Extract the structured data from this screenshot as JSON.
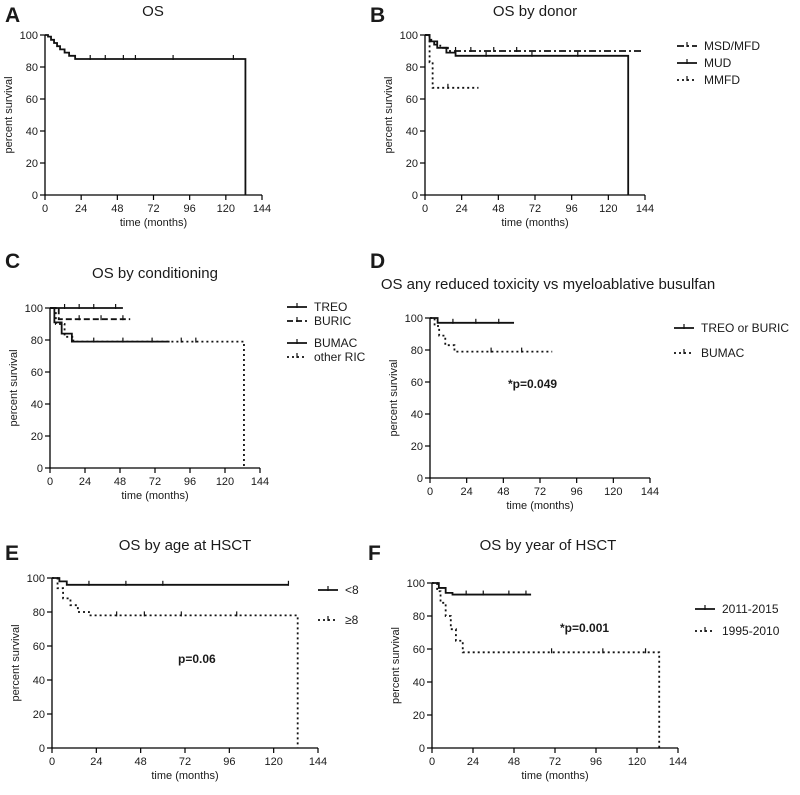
{
  "chart_data": [
    {
      "panel_label": "A",
      "type": "line",
      "title": "OS",
      "xlabel": "time (months)",
      "ylabel": "percent survival",
      "xlim": [
        0,
        144
      ],
      "ylim": [
        0,
        100
      ],
      "xticks": [
        "0",
        "24",
        "48",
        "72",
        "96",
        "120",
        "144"
      ],
      "yticks": [
        "0",
        "20",
        "40",
        "60",
        "80",
        "100"
      ],
      "annotation": "",
      "legend_position": "none",
      "series": [
        {
          "name": "",
          "style": "solid",
          "steps": [
            [
              0,
              100
            ],
            [
              2,
              99
            ],
            [
              4,
              97
            ],
            [
              6,
              95
            ],
            [
              8,
              93
            ],
            [
              10,
              91
            ],
            [
              13,
              89
            ],
            [
              16,
              87
            ],
            [
              20,
              85
            ],
            [
              133,
              85
            ],
            [
              133,
              0
            ]
          ],
          "censor": [
            30,
            40,
            52,
            60,
            85,
            125
          ]
        }
      ]
    },
    {
      "panel_label": "B",
      "type": "line",
      "title": "OS by  donor",
      "xlabel": "time (months)",
      "ylabel": "percent survival",
      "xlim": [
        0,
        144
      ],
      "ylim": [
        0,
        100
      ],
      "xticks": [
        "0",
        "24",
        "48",
        "72",
        "96",
        "120",
        "144"
      ],
      "yticks": [
        "0",
        "20",
        "40",
        "60",
        "80",
        "100"
      ],
      "annotation": "",
      "legend_position": "right",
      "series": [
        {
          "name": "MSD/MFD",
          "style": "dashdot",
          "steps": [
            [
              0,
              100
            ],
            [
              3,
              97
            ],
            [
              6,
              94
            ],
            [
              10,
              92
            ],
            [
              15,
              90
            ],
            [
              143,
              90
            ]
          ],
          "censor": [
            20,
            30,
            45,
            60
          ]
        },
        {
          "name": "MUD",
          "style": "solid",
          "steps": [
            [
              0,
              100
            ],
            [
              3,
              96
            ],
            [
              8,
              92
            ],
            [
              14,
              89
            ],
            [
              20,
              87
            ],
            [
              133,
              87
            ],
            [
              133,
              0
            ]
          ],
          "censor": [
            40,
            70,
            100
          ]
        },
        {
          "name": "MMFD",
          "style": "dotted",
          "steps": [
            [
              0,
              100
            ],
            [
              3,
              83
            ],
            [
              5,
              67
            ],
            [
              35,
              67
            ]
          ],
          "censor": [
            15
          ]
        }
      ]
    },
    {
      "panel_label": "C",
      "type": "line",
      "title": "OS by  conditioning",
      "xlabel": "time (months)",
      "ylabel": "percent survival",
      "xlim": [
        0,
        144
      ],
      "ylim": [
        0,
        100
      ],
      "xticks": [
        "0",
        "24",
        "48",
        "72",
        "96",
        "120",
        "144"
      ],
      "yticks": [
        "0",
        "20",
        "40",
        "60",
        "80",
        "100"
      ],
      "annotation": "",
      "legend_position": "right",
      "series": [
        {
          "name": "TREO",
          "style": "solid",
          "steps": [
            [
              0,
              100
            ],
            [
              50,
              100
            ]
          ],
          "censor": [
            10,
            20,
            30,
            45
          ]
        },
        {
          "name": "BURIC",
          "style": "dashed",
          "steps": [
            [
              0,
              100
            ],
            [
              6,
              93
            ],
            [
              55,
              93
            ]
          ],
          "censor": [
            20,
            35,
            50
          ]
        },
        {
          "name": "BUMAC",
          "style": "solid",
          "steps": [
            [
              0,
              100
            ],
            [
              3,
              91
            ],
            [
              8,
              84
            ],
            [
              15,
              79
            ],
            [
              82,
              79
            ]
          ],
          "censor": [
            30,
            50,
            70
          ]
        },
        {
          "name": "other RIC",
          "style": "dotted",
          "steps": [
            [
              0,
              100
            ],
            [
              4,
              90
            ],
            [
              10,
              82
            ],
            [
              16,
              79
            ],
            [
              133,
              79
            ],
            [
              133,
              0
            ]
          ],
          "censor": [
            90,
            100
          ]
        }
      ]
    },
    {
      "panel_label": "D",
      "type": "line",
      "title": "OS any reduced toxicity vs  myeloablative busulfan",
      "xlabel": "time (months)",
      "ylabel": "percent survival",
      "xlim": [
        0,
        144
      ],
      "ylim": [
        0,
        100
      ],
      "xticks": [
        "0",
        "24",
        "48",
        "72",
        "96",
        "120",
        "144"
      ],
      "yticks": [
        "0",
        "20",
        "40",
        "60",
        "80",
        "100"
      ],
      "annotation": "*p=0.049",
      "legend_position": "right",
      "series": [
        {
          "name": "TREO or BURIC",
          "style": "solid",
          "steps": [
            [
              0,
              100
            ],
            [
              5,
              97
            ],
            [
              55,
              97
            ]
          ],
          "censor": [
            15,
            30,
            45
          ]
        },
        {
          "name": "BUMAC",
          "style": "dotted",
          "steps": [
            [
              0,
              100
            ],
            [
              3,
              95
            ],
            [
              6,
              89
            ],
            [
              10,
              83
            ],
            [
              16,
              79
            ],
            [
              80,
              79
            ]
          ],
          "censor": [
            40,
            60
          ]
        }
      ]
    },
    {
      "panel_label": "E",
      "type": "line",
      "title": "OS by  age at HSCT",
      "xlabel": "time (months)",
      "ylabel": "percent survival",
      "xlim": [
        0,
        144
      ],
      "ylim": [
        0,
        100
      ],
      "xticks": [
        "0",
        "24",
        "48",
        "72",
        "96",
        "120",
        "144"
      ],
      "yticks": [
        "0",
        "20",
        "40",
        "60",
        "80",
        "100"
      ],
      "annotation": "p=0.06",
      "legend_position": "right",
      "series": [
        {
          "name": "<8",
          "style": "solid",
          "steps": [
            [
              0,
              100
            ],
            [
              4,
              98
            ],
            [
              8,
              96
            ],
            [
              128,
              96
            ]
          ],
          "censor": [
            20,
            40,
            60,
            128
          ]
        },
        {
          "name": "≥8",
          "style": "dotted",
          "steps": [
            [
              0,
              100
            ],
            [
              3,
              94
            ],
            [
              6,
              88
            ],
            [
              10,
              84
            ],
            [
              14,
              80
            ],
            [
              20,
              78
            ],
            [
              133,
              78
            ],
            [
              133,
              0
            ]
          ],
          "censor": [
            35,
            50,
            70,
            100
          ]
        }
      ]
    },
    {
      "panel_label": "F",
      "type": "line",
      "title": "OS by  year of HSCT",
      "xlabel": "time (months)",
      "ylabel": "percent survival",
      "xlim": [
        0,
        144
      ],
      "ylim": [
        0,
        100
      ],
      "xticks": [
        "0",
        "24",
        "48",
        "72",
        "96",
        "120",
        "144"
      ],
      "yticks": [
        "0",
        "20",
        "40",
        "60",
        "80",
        "100"
      ],
      "annotation": "*p=0.001",
      "legend_position": "right",
      "series": [
        {
          "name": "2011-2015",
          "style": "solid",
          "steps": [
            [
              0,
              100
            ],
            [
              4,
              97
            ],
            [
              8,
              94
            ],
            [
              12,
              93
            ],
            [
              58,
              93
            ]
          ],
          "censor": [
            20,
            30,
            45,
            55
          ]
        },
        {
          "name": "1995-2010",
          "style": "dotted",
          "steps": [
            [
              0,
              100
            ],
            [
              3,
              95
            ],
            [
              5,
              88
            ],
            [
              8,
              80
            ],
            [
              11,
              72
            ],
            [
              14,
              65
            ],
            [
              18,
              58
            ],
            [
              133,
              58
            ],
            [
              133,
              0
            ]
          ],
          "censor": [
            70,
            100,
            125
          ]
        }
      ]
    }
  ]
}
